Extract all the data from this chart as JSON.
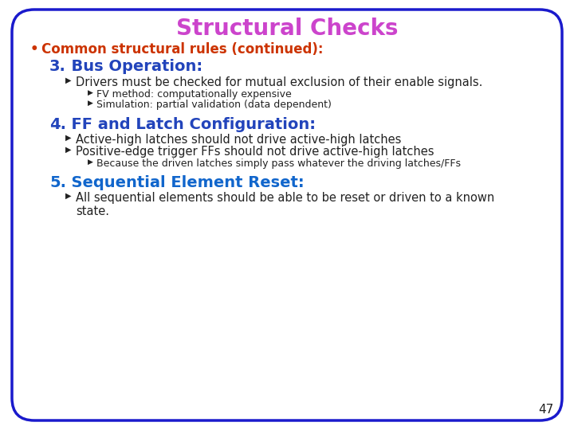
{
  "title": "Structural Checks",
  "title_color": "#cc44cc",
  "background_color": "#ffffff",
  "border_color": "#1a1acc",
  "bullet_color": "#cc3300",
  "bullet_text": "Common structural rules (continued):",
  "heading3_color": "#2244bb",
  "heading3_num": "3.",
  "heading3_text": "  Bus Operation:",
  "heading4_color": "#2244bb",
  "heading4_num": "4.",
  "heading4_text": "  FF and Latch Configuration:",
  "heading5_color": "#1166cc",
  "heading5_num": "5.",
  "heading5_text": "  Sequential Element Reset:",
  "arrow": "Ø",
  "text_color": "#222222",
  "page_number": "47",
  "items": [
    {
      "level": 1,
      "text": "Drivers must be checked for mutual exclusion of their enable signals."
    },
    {
      "level": 2,
      "text": "FV method: computationally expensive"
    },
    {
      "level": 2,
      "text": "Simulation: partial validation (data dependent)"
    },
    {
      "level": 1,
      "text": "Active-high latches should not drive active-high latches"
    },
    {
      "level": 1,
      "text": "Positive-edge trigger FFs should not drive active-high latches"
    },
    {
      "level": 2,
      "text": "Because the driven latches simply pass whatever the driving latches/FFs"
    },
    {
      "level": 1,
      "text": "All sequential elements should be able to be reset or driven to a known\nstate."
    }
  ]
}
